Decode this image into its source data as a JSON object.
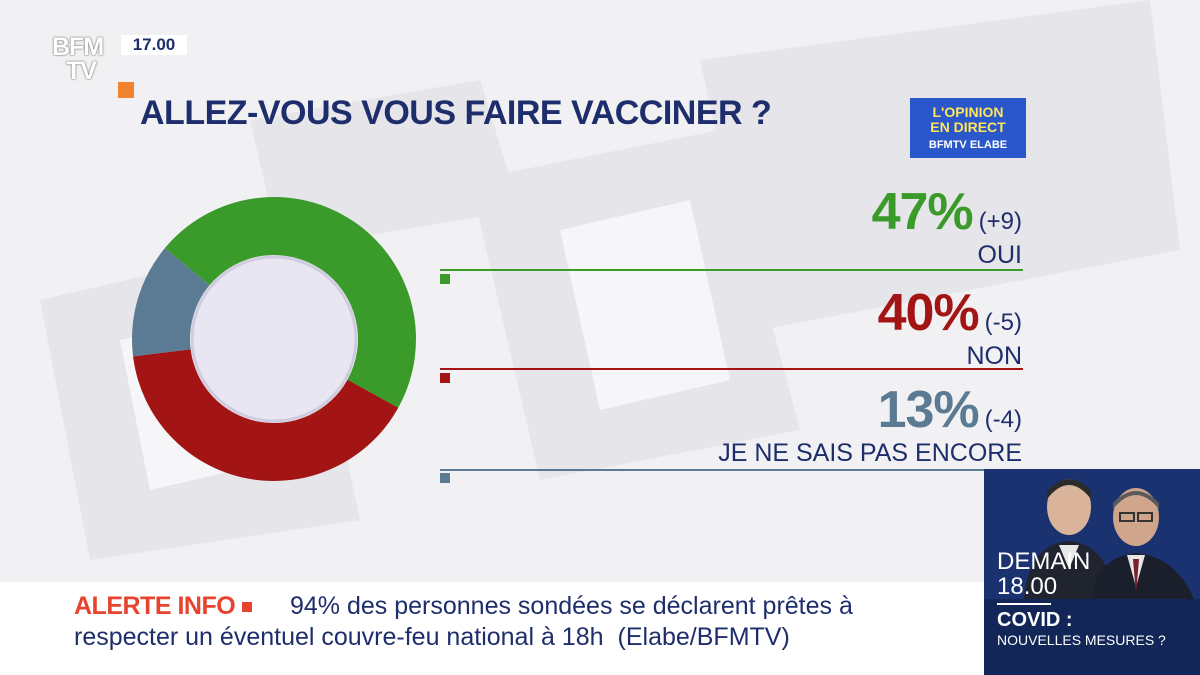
{
  "channel": {
    "logo_line1": "BFM",
    "logo_line2": "TV",
    "time": "17.00"
  },
  "question": "ALLEZ-VOUS VOUS FAIRE VACCINER ?",
  "badge": {
    "line1": "L'OPINION",
    "line2": "EN DIRECT",
    "line3": "BFMTV ELABE"
  },
  "results": [
    {
      "pct": "47%",
      "delta": "(+9)",
      "label": "OUI",
      "color": "#3a9a2a"
    },
    {
      "pct": "40%",
      "delta": "(-5)",
      "label": "NON",
      "color": "#a31515"
    },
    {
      "pct": "13%",
      "delta": "(-4)",
      "label": "JE NE SAIS PAS ENCORE",
      "color": "#5b7a93"
    }
  ],
  "chart_data": {
    "type": "pie",
    "categories": [
      "OUI",
      "NON",
      "JE NE SAIS PAS ENCORE"
    ],
    "values": [
      47,
      40,
      13
    ],
    "title": "ALLEZ-VOUS VOUS FAIRE VACCINER ?",
    "colors": [
      "#3a9a2a",
      "#a31515",
      "#5b7a93"
    ]
  },
  "ticker": {
    "alert_label": "ALERTE INFO",
    "line1": "94% des personnes sondées  se déclarent prêtes à",
    "line2": "respecter un éventuel couvre-feu national à 18h",
    "source": "(Elabe/BFMTV)"
  },
  "promo": {
    "day": "DEMAIN",
    "time": "18.00",
    "topic": "COVID :",
    "subtitle": "NOUVELLES MESURES ?"
  }
}
